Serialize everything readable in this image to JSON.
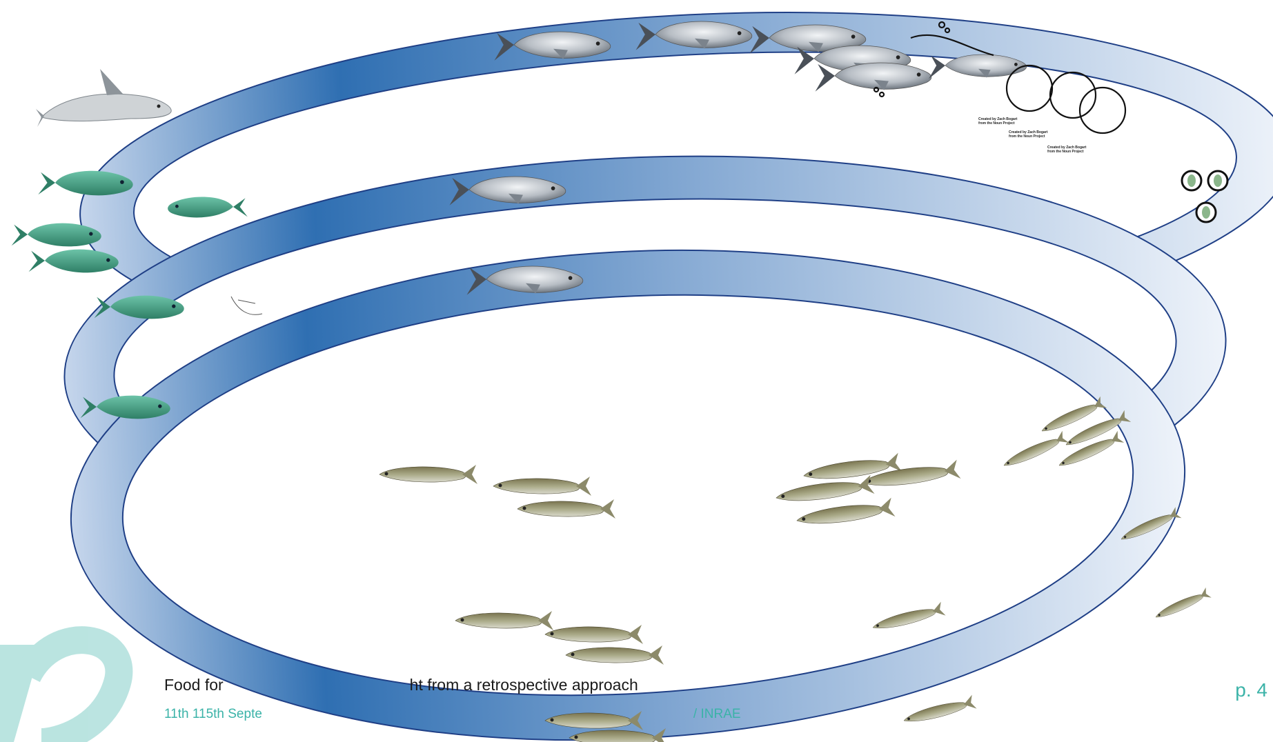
{
  "footer": {
    "title": "Food for",
    "title_tail": "ht from a retrospective approach",
    "date": "11th 115th Septe",
    "date_tail": "/ INRAE",
    "page": "p. 4"
  },
  "credits": [
    "Created by Zach Bogart from the Noun Project",
    "Created by Zach Bogart from the Noun Project",
    "Created by Zach Bogart from the Noun Project"
  ],
  "colors": {
    "ring_dark": "#2f6fb2",
    "ring_light": "#e7eef7",
    "ring_stroke": "#1f3f86",
    "accent": "#3bb3a8",
    "shad": "#a7aeb6",
    "juvenile_green": "#3f9d82",
    "sprat": "#8a8a62"
  },
  "icons": [
    "porpoise-icon",
    "shad-fish-icon",
    "juvenile-fish-icon",
    "sprat-fish-icon",
    "egg-icon",
    "fishing-net-icon",
    "brand-logo-icon"
  ]
}
